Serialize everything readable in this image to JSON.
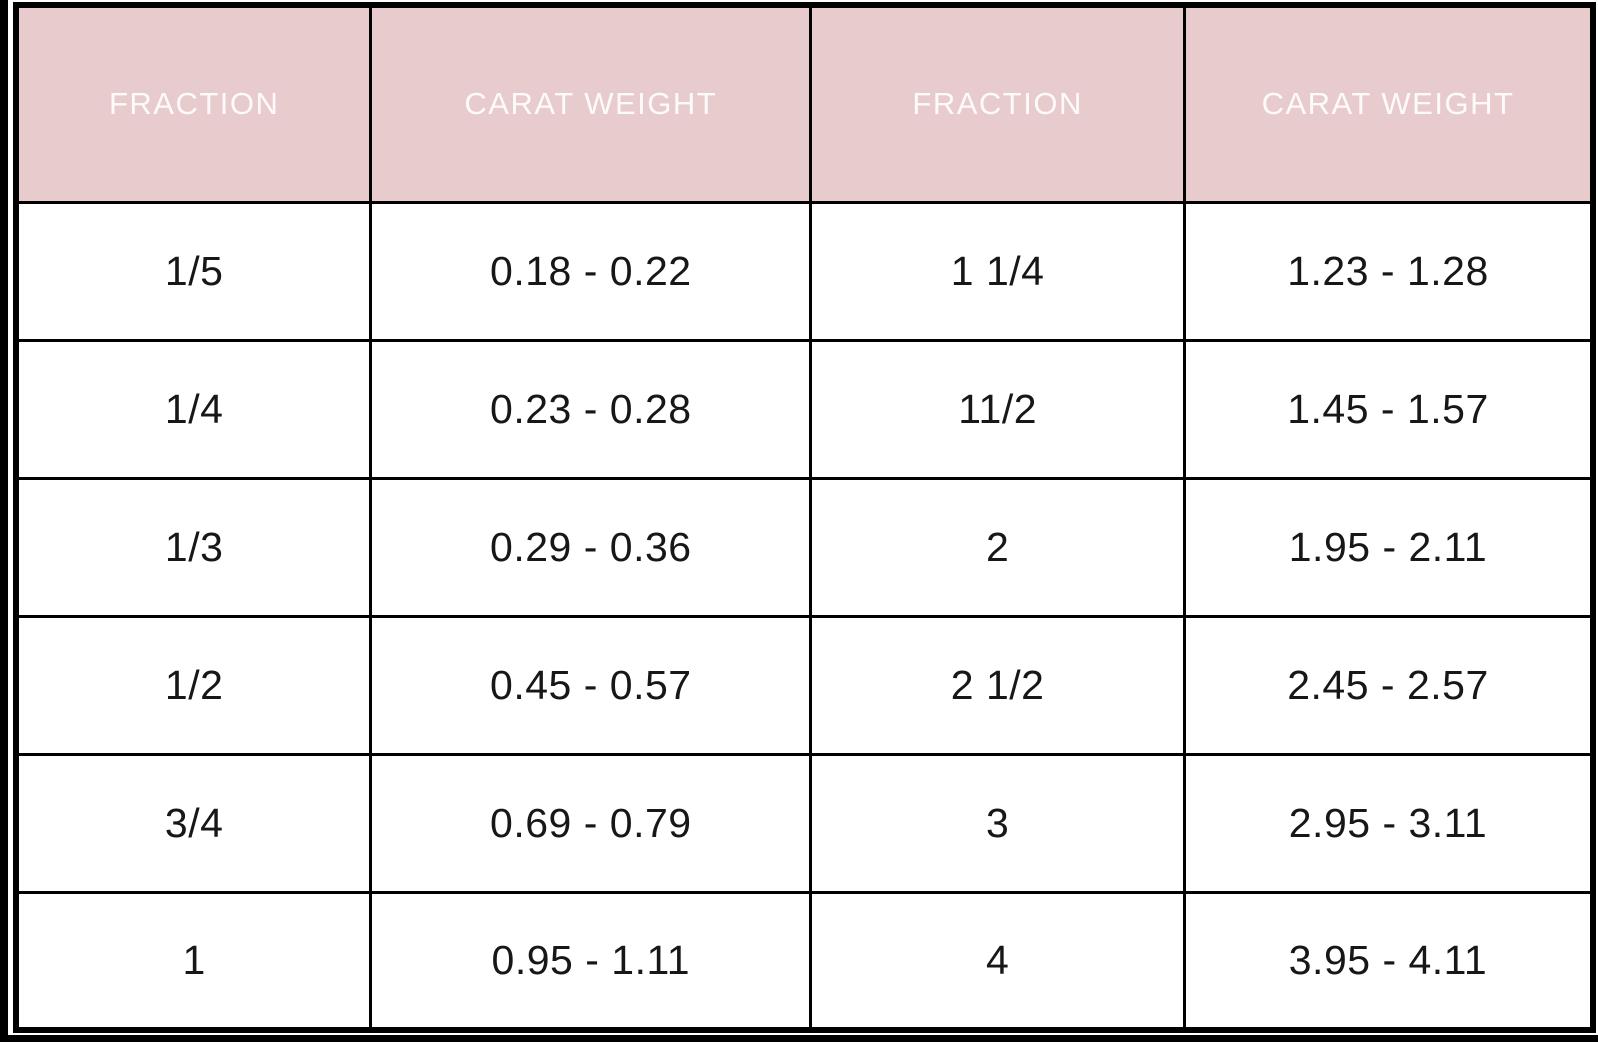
{
  "colors": {
    "header_bg": "#e8cccd",
    "header_text": "#fdfafa",
    "cell_text": "#171717",
    "border": "#000000",
    "page_bg": "#ffffff",
    "edge_bars": "#000000"
  },
  "chart_data": {
    "type": "table",
    "columns": [
      "FRACTION",
      "CARAT WEIGHT",
      "FRACTION",
      "CARAT WEIGHT"
    ],
    "rows": [
      [
        "1/5",
        "0.18 - 0.22",
        "1 1/4",
        "1.23 - 1.28"
      ],
      [
        "1/4",
        "0.23 - 0.28",
        "11/2",
        "1.45 - 1.57"
      ],
      [
        "1/3",
        "0.29 - 0.36",
        "2",
        "1.95 - 2.11"
      ],
      [
        "1/2",
        "0.45 - 0.57",
        "2 1/2",
        "2.45 - 2.57"
      ],
      [
        "3/4",
        "0.69 - 0.79",
        "3",
        "2.95 - 3.11"
      ],
      [
        "1",
        "0.95 - 1.11",
        "4",
        "3.95 - 4.11"
      ]
    ]
  }
}
